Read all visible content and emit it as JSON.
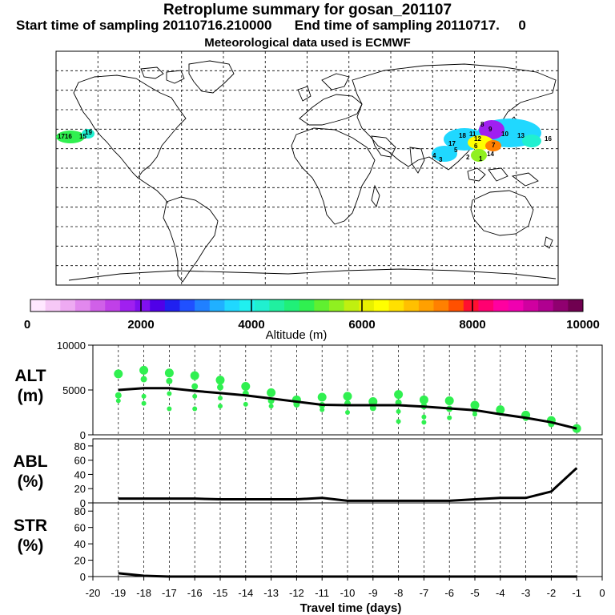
{
  "header": {
    "title": "Retroplume summary for gosan_201107",
    "start_label": "Start time of sampling 20110716.210000",
    "end_label": "End time of sampling 20110717.",
    "end_suffix": "0",
    "meteo_label": "Meteorological data used is ECMWF"
  },
  "map": {
    "plume_labels": [
      "1716",
      "15",
      "19",
      "9",
      "13",
      "14",
      "16",
      "18",
      "17",
      "12",
      "11",
      "10",
      "8",
      "7",
      "6",
      "5",
      "4",
      "3",
      "2",
      "1"
    ]
  },
  "colorbar": {
    "min_label": "0",
    "labels": [
      "2000",
      "4000",
      "6000",
      "8000",
      "10000"
    ],
    "title": "Altitude (m)",
    "colors": [
      "#ffe8ff",
      "#f6c8f6",
      "#eeaaf2",
      "#e288ee",
      "#d060e8",
      "#c040e8",
      "#a020f0",
      "#8010f0",
      "#5000e8",
      "#2020f0",
      "#2050ff",
      "#2080ff",
      "#20b0ff",
      "#20d8ff",
      "#20f0f0",
      "#20f0d0",
      "#20f0a0",
      "#20f078",
      "#30f050",
      "#60f030",
      "#90f020",
      "#c0f010",
      "#e8f000",
      "#ffff00",
      "#ffe000",
      "#ffc000",
      "#ffa000",
      "#ff8000",
      "#ff5000",
      "#ff1030",
      "#ff0070",
      "#ff00a0",
      "#f000b0",
      "#d000a0",
      "#b00090",
      "#900070",
      "#700050"
    ]
  },
  "chart_data": [
    {
      "type": "line",
      "panel": "ALT",
      "ylabel_line1": "ALT",
      "ylabel_line2": "(m)",
      "ylim": [
        0,
        10000
      ],
      "yticks": [
        "10000",
        "5000",
        "0"
      ],
      "x": [
        -19,
        -18,
        -17,
        -16,
        -15,
        -14,
        -13,
        -12,
        -11,
        -10,
        -9,
        -8,
        -7,
        -6,
        -5,
        -4,
        -3,
        -2,
        -1
      ],
      "values": [
        5000,
        5200,
        5200,
        4900,
        4650,
        4400,
        4050,
        3700,
        3350,
        3300,
        3300,
        3300,
        3150,
        2950,
        2750,
        2300,
        1900,
        1400,
        700
      ],
      "scatter": [
        {
          "x": -19,
          "y": [
            6800,
            4400,
            3800
          ]
        },
        {
          "x": -18,
          "y": [
            7200,
            6200,
            4300,
            3500
          ]
        },
        {
          "x": -17,
          "y": [
            6900,
            6000,
            4600,
            2900
          ]
        },
        {
          "x": -16,
          "y": [
            6600,
            5400,
            4300,
            2900
          ]
        },
        {
          "x": -15,
          "y": [
            6100,
            5300,
            4100,
            3200
          ]
        },
        {
          "x": -14,
          "y": [
            5400,
            4600,
            3400
          ]
        },
        {
          "x": -13,
          "y": [
            4700,
            3800,
            3200
          ]
        },
        {
          "x": -12,
          "y": [
            3900,
            3400
          ]
        },
        {
          "x": -11,
          "y": [
            4200,
            3300,
            2800
          ]
        },
        {
          "x": -10,
          "y": [
            4300,
            3500,
            2500
          ]
        },
        {
          "x": -9,
          "y": [
            3700,
            3000
          ]
        },
        {
          "x": -8,
          "y": [
            4500,
            3600,
            2600,
            1500
          ]
        },
        {
          "x": -7,
          "y": [
            3900,
            3200,
            2000,
            1400
          ]
        },
        {
          "x": -6,
          "y": [
            3800,
            2900,
            1900
          ]
        },
        {
          "x": -5,
          "y": [
            3300,
            2800,
            2300
          ]
        },
        {
          "x": -4,
          "y": [
            2800,
            2500
          ]
        },
        {
          "x": -3,
          "y": [
            2200,
            1900
          ]
        },
        {
          "x": -2,
          "y": [
            1600,
            1200
          ]
        },
        {
          "x": -1,
          "y": [
            700
          ]
        }
      ]
    },
    {
      "type": "line",
      "panel": "ABL",
      "ylabel_line1": "ABL",
      "ylabel_line2": "(%)",
      "ylim": [
        0,
        90
      ],
      "yticks": [
        "80",
        "60",
        "40",
        "20",
        "0"
      ],
      "x": [
        -19,
        -18,
        -17,
        -16,
        -15,
        -14,
        -13,
        -12,
        -11,
        -10,
        -9,
        -8,
        -7,
        -6,
        -5,
        -4,
        -3,
        -2,
        -1
      ],
      "values": [
        6,
        6,
        6,
        6,
        5,
        5,
        5,
        5,
        7,
        3,
        3,
        3,
        3,
        3,
        5,
        7,
        7,
        16,
        49
      ]
    },
    {
      "type": "line",
      "panel": "STR",
      "ylabel_line1": "STR",
      "ylabel_line2": "(%)",
      "ylim": [
        0,
        90
      ],
      "yticks": [
        "80",
        "60",
        "40",
        "20",
        "0"
      ],
      "x": [
        -19,
        -18,
        -17,
        -16,
        -15,
        -14,
        -13,
        -12,
        -11,
        -10,
        -9,
        -8,
        -7,
        -6,
        -5,
        -4,
        -3,
        -2,
        -1
      ],
      "values": [
        4,
        1,
        0,
        0,
        0,
        0,
        0,
        0,
        0,
        0,
        0,
        0,
        0,
        0,
        0,
        0,
        0,
        0,
        0
      ]
    }
  ],
  "xaxis": {
    "title": "Travel time (days)",
    "ticks": [
      "-20",
      "-19",
      "-18",
      "-17",
      "-16",
      "-15",
      "-14",
      "-13",
      "-12",
      "-11",
      "-10",
      "-9",
      "-8",
      "-7",
      "-6",
      "-5",
      "-4",
      "-3",
      "-2",
      "-1",
      "0"
    ]
  }
}
